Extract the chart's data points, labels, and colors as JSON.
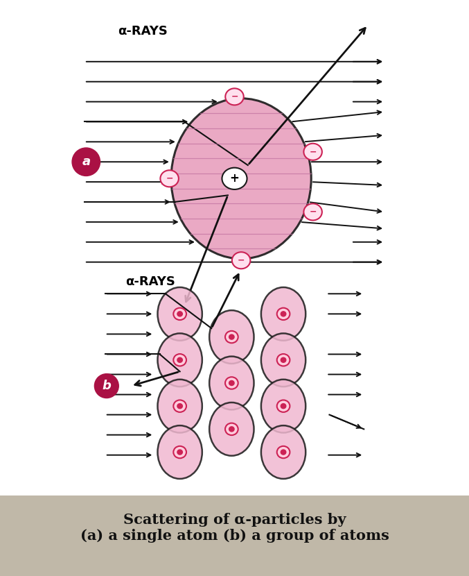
{
  "bg_color": "#ffffff",
  "atom_fill_a": "#e8a0be",
  "atom_fill_b": "#f0b8d0",
  "atom_edge": "#1a1a1a",
  "nucleus_b_ring": "#cc2255",
  "nucleus_b_fill": "#ffccdd",
  "label_circle_color": "#aa1144",
  "arrow_color": "#111111",
  "title": "Scattering of α-particles by\n(a) a single atom (b) a group of atoms",
  "title_bg": "#c0b8a8",
  "alpha_label": "α-RAYS",
  "stripe_color": "#c070a0",
  "electron_edge": "#cc2255",
  "electron_text": "#cc2255",
  "plus_text": "#000000"
}
